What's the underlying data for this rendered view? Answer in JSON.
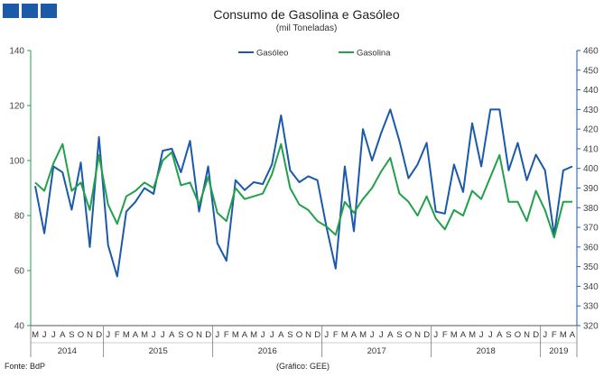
{
  "header": {
    "title": "Consumo de Gasolina e Gasóleo",
    "subtitle": "(mil Toneladas)"
  },
  "footer": {
    "source": "Fonte: BdP",
    "credit": "(Gráfico: GEE)"
  },
  "colors": {
    "gasoleo": "#1b5aa8",
    "gasolina": "#22a04b",
    "axis_left": "#22a04b",
    "axis_right": "#1b5aa8",
    "logo": "#1b5aa8"
  },
  "chart_data": {
    "type": "line",
    "title": "Consumo de Gasolina e Gasóleo",
    "subtitle": "(mil Toneladas)",
    "legend_position": "top-center",
    "month_labels": [
      "M",
      "J",
      "J",
      "A",
      "S",
      "O",
      "N",
      "D",
      "J",
      "F",
      "M",
      "A",
      "M",
      "J",
      "J",
      "A",
      "S",
      "O",
      "N",
      "D",
      "J",
      "F",
      "M",
      "A",
      "M",
      "J",
      "J",
      "A",
      "S",
      "O",
      "N",
      "D",
      "J",
      "F",
      "M",
      "A",
      "M",
      "J",
      "J",
      "A",
      "S",
      "O",
      "N",
      "D",
      "J",
      "F",
      "M",
      "A",
      "M",
      "J",
      "J",
      "A",
      "S",
      "O",
      "N",
      "D",
      "J",
      "F",
      "M",
      "A"
    ],
    "years": [
      {
        "label": "2014",
        "start": 0,
        "count": 8
      },
      {
        "label": "2015",
        "start": 8,
        "count": 12
      },
      {
        "label": "2016",
        "start": 20,
        "count": 12
      },
      {
        "label": "2017",
        "start": 32,
        "count": 12
      },
      {
        "label": "2018",
        "start": 44,
        "count": 12
      },
      {
        "label": "2019",
        "start": 56,
        "count": 4
      }
    ],
    "y_left": {
      "range": [
        40,
        140
      ],
      "ticks": [
        40,
        60,
        80,
        100,
        120,
        140
      ],
      "series": "Gasolina"
    },
    "y_right": {
      "range": [
        320,
        460
      ],
      "ticks": [
        320,
        330,
        340,
        350,
        360,
        370,
        380,
        390,
        400,
        410,
        420,
        430,
        440,
        450,
        460
      ],
      "series": "Gasóleo"
    },
    "series": [
      {
        "name": "Gasóleo",
        "axis": "right",
        "values": [
          391,
          367,
          401,
          398,
          379,
          403,
          360,
          416,
          361,
          345,
          378,
          383,
          390,
          387,
          409,
          410,
          398,
          414,
          378,
          401,
          362,
          353,
          394,
          389,
          393,
          392,
          402,
          427,
          399,
          393,
          396,
          394,
          370,
          349,
          401,
          368,
          420,
          404,
          418,
          430,
          414,
          395,
          402,
          413,
          378,
          377,
          402,
          388,
          423,
          401,
          430,
          430,
          399,
          413,
          394,
          407,
          399,
          366,
          399,
          401
        ]
      },
      {
        "name": "Gasolina",
        "axis": "left",
        "values": [
          92,
          89,
          99,
          106,
          89,
          92,
          82,
          102,
          84,
          77,
          87,
          89,
          92,
          90,
          100,
          103,
          91,
          92,
          84,
          94,
          81,
          78,
          90,
          86,
          87,
          88,
          95,
          106,
          90,
          84,
          82,
          78,
          76,
          73,
          85,
          81,
          86,
          90,
          96,
          101,
          88,
          85,
          80,
          87,
          79,
          75,
          82,
          80,
          89,
          86,
          94,
          102,
          85,
          85,
          78,
          89,
          82,
          72,
          85,
          85
        ]
      }
    ]
  }
}
